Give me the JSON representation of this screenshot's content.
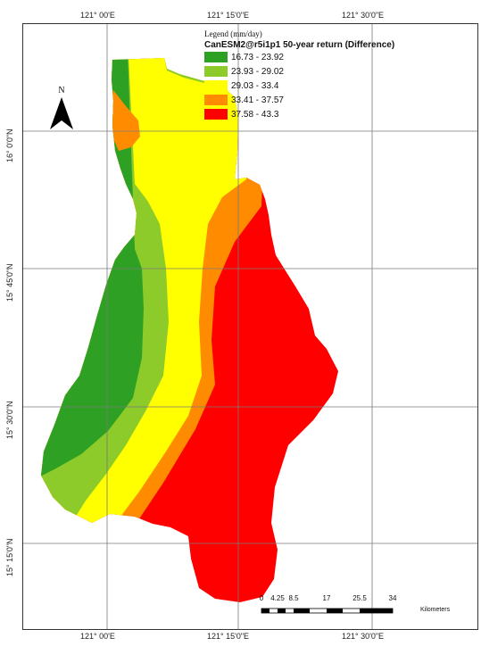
{
  "axes": {
    "top_labels": [
      "121° 00'E",
      "121° 15'0\"E",
      "121° 30'0\"E"
    ],
    "bottom_labels": [
      "121° 00'E",
      "121° 15'0\"E",
      "121° 30'0\"E"
    ],
    "left_labels": [
      "16° 0'0\"N",
      "15° 45'0\"N",
      "15° 30'0\"N",
      "15° 15'0\"N"
    ]
  },
  "legend": {
    "title": "Legend (mm/day)",
    "subtitle": "CanESM2@r5i1p1 50-year return (Difference)",
    "items": [
      {
        "label": "16.73 - 23.92",
        "color": "#2ea125"
      },
      {
        "label": "23.93 - 29.02",
        "color": "#8ccb2a"
      },
      {
        "label": "29.03 - 33.4",
        "color": "#ffff00"
      },
      {
        "label": "33.41 - 37.57",
        "color": "#ff8c00"
      },
      {
        "label": "37.58 - 43.3",
        "color": "#ff0000"
      }
    ]
  },
  "north_arrow": {
    "label": "N",
    "icon": "north-arrow-icon"
  },
  "scale_bar": {
    "ticks": [
      "0",
      "4.25",
      "8.5",
      "17",
      "25.5",
      "34"
    ],
    "units": "Kilometers"
  }
}
